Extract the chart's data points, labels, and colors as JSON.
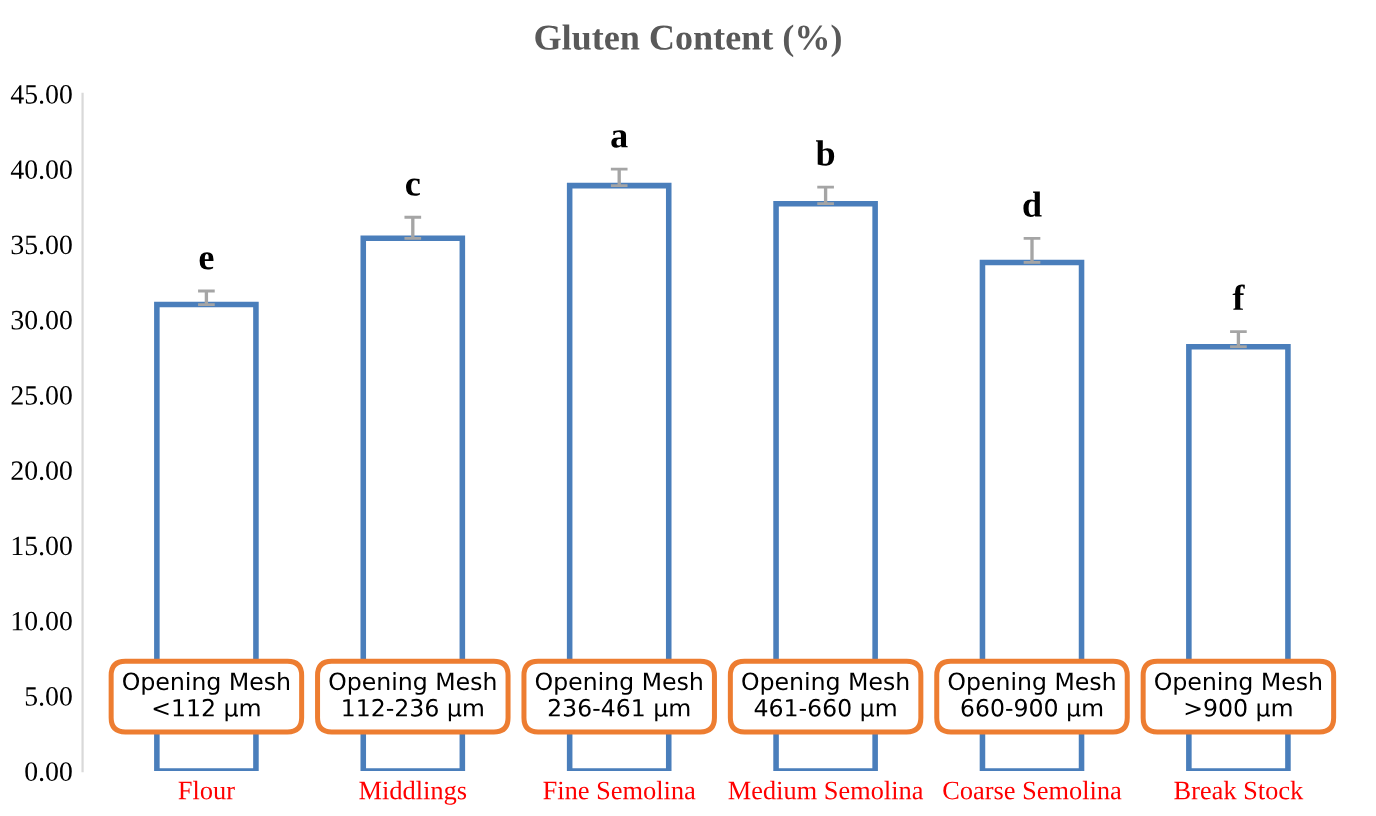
{
  "chart_data": {
    "type": "bar",
    "title": "Gluten Content (%)",
    "categories": [
      "Flour",
      "Middlings",
      "Fine Semolina",
      "Medium Semolina",
      "Coarse Semolina",
      "Break Stock"
    ],
    "values": [
      31.0,
      35.4,
      38.9,
      37.7,
      33.8,
      28.2
    ],
    "errors": [
      0.9,
      1.4,
      1.1,
      1.1,
      1.6,
      1.0
    ],
    "color": "#4a7ebb",
    "ylim": [
      0,
      45
    ],
    "yticks": [
      {
        "value": 0,
        "label": "0.00"
      },
      {
        "value": 5,
        "label": "5.00"
      },
      {
        "value": 10,
        "label": "10.00"
      },
      {
        "value": 15,
        "label": "15.00"
      },
      {
        "value": 20,
        "label": "20.00"
      },
      {
        "value": 25,
        "label": "25.00"
      },
      {
        "value": 30,
        "label": "30.00"
      },
      {
        "value": 35,
        "label": "35.00"
      },
      {
        "value": 40,
        "label": "40.00"
      },
      {
        "value": 45,
        "label": "45.00"
      }
    ],
    "grid": false,
    "annotations": [
      "e",
      "c",
      "a",
      "b",
      "d",
      "f",
      "Opening Mesh\n<112 µm",
      "Opening Mesh\n112-236 µm",
      "Opening Mesh\n236-461 µm",
      "Opening Mesh\n461-660 µm",
      "Opening Mesh\n660-900 µm",
      "Opening Mesh\n>900 µm"
    ]
  }
}
